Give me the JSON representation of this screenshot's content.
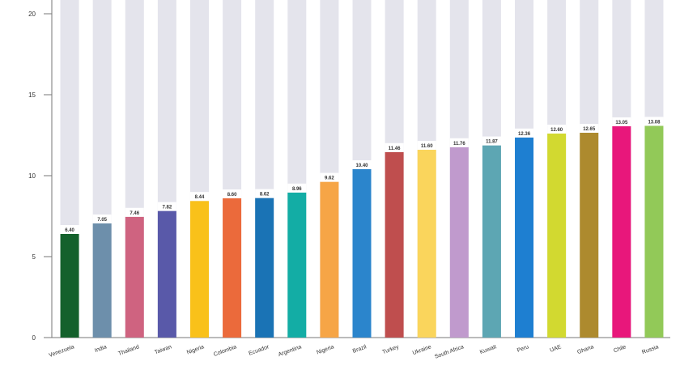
{
  "chart_data": {
    "type": "bar",
    "categories": [
      "Venezuela",
      "India",
      "Thailand",
      "Taiwan",
      "Nigeria",
      "Colombia",
      "Ecuador",
      "Argentina",
      "Nigeria",
      "Brazil",
      "Turkey",
      "Ukraine",
      "South Africa",
      "Kuwait",
      "Peru",
      "UAE",
      "Ghana",
      "Chile",
      "Russia"
    ],
    "values": [
      6.4,
      7.05,
      7.46,
      7.82,
      8.44,
      8.6,
      8.62,
      8.96,
      9.62,
      10.4,
      11.46,
      11.6,
      11.76,
      11.87,
      12.36,
      12.6,
      12.65,
      13.05,
      13.08
    ],
    "value_labels": [
      "6.40",
      "7.05",
      "7.46",
      "7.82",
      "8.44",
      "8.60",
      "8.62",
      "8.96",
      "9.62",
      "10.40",
      "11.46",
      "11.60",
      "11.76",
      "11.87",
      "12.36",
      "12.60",
      "12.65",
      "13.05",
      "13.08"
    ],
    "colors": [
      "#14612c",
      "#6d8fab",
      "#cf6380",
      "#5959a9",
      "#f9c11a",
      "#eb6a3b",
      "#1a73b5",
      "#13ada5",
      "#f6a546",
      "#2b85cc",
      "#bf4e4e",
      "#fad55c",
      "#c09acd",
      "#5da6b3",
      "#1e7fd1",
      "#d2d930",
      "#ad8a2e",
      "#e8177b",
      "#92c958"
    ],
    "ylim": [
      0,
      20
    ],
    "yticks": [
      0,
      5,
      10,
      15,
      20
    ],
    "ytick_labels": [
      "0",
      "5",
      "10",
      "15",
      "20"
    ],
    "background_bar_color": "#e4e4ec",
    "grid": false,
    "title": "",
    "xlabel": "",
    "ylabel": ""
  }
}
